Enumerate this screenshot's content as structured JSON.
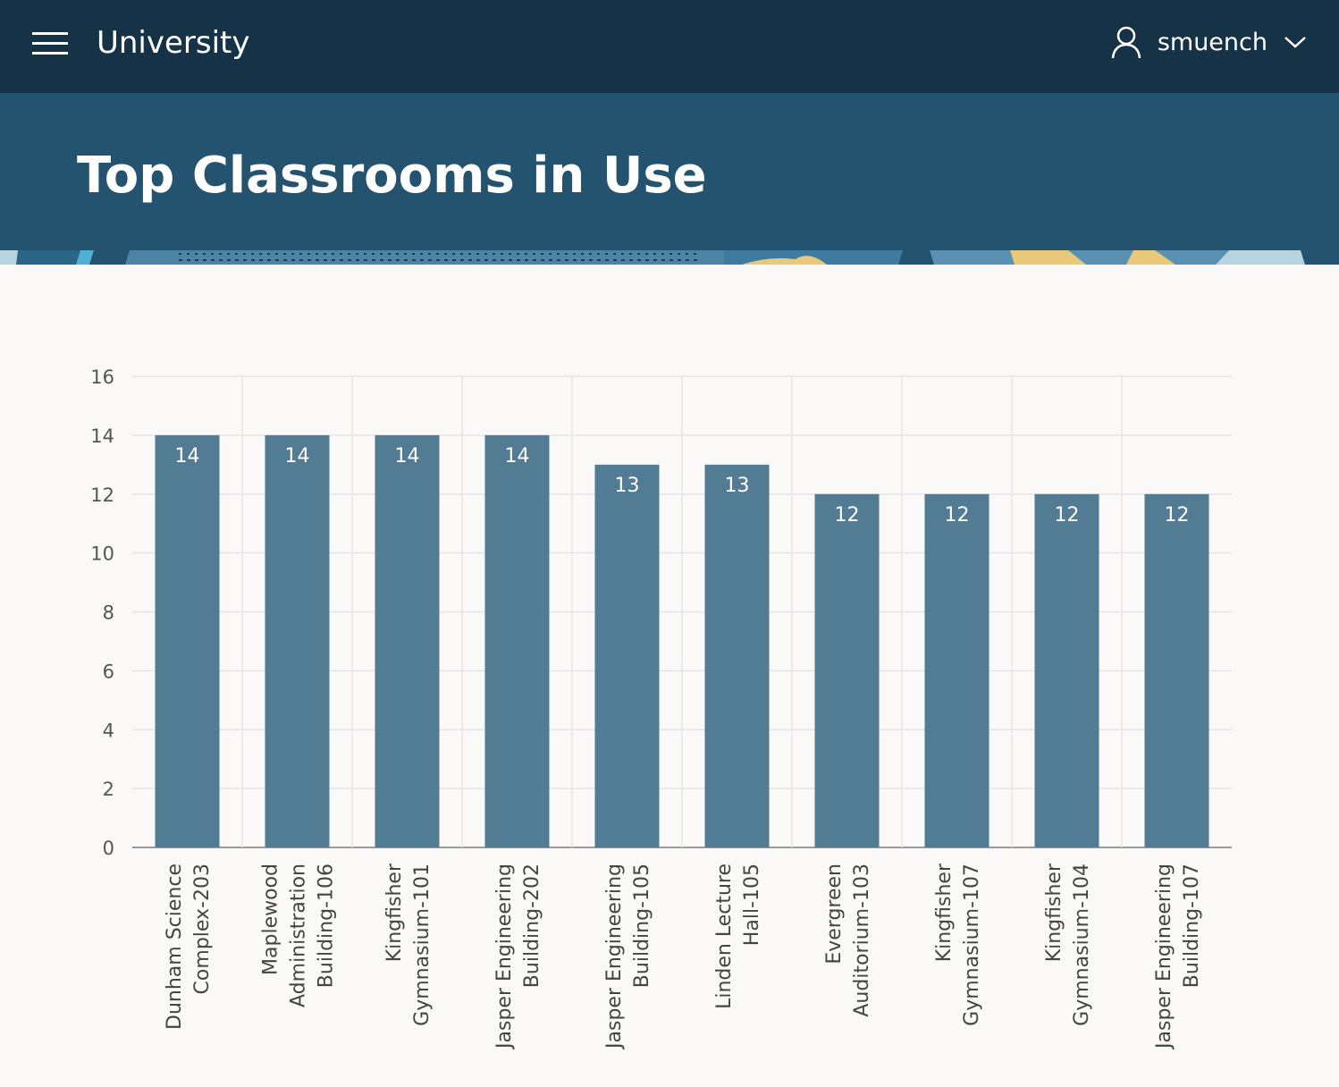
{
  "header": {
    "app_title": "University",
    "username": "smuench"
  },
  "page": {
    "title": "Top Classrooms in Use"
  },
  "colors": {
    "bar": "#527b94",
    "topbar": "#163246",
    "hero": "#23536e"
  },
  "chart_data": {
    "type": "bar",
    "categories": [
      [
        "Dunham Science",
        "Complex-203"
      ],
      [
        "Maplewood",
        "Administration",
        "Building-106"
      ],
      [
        "Kingfisher",
        "Gymnasium-101"
      ],
      [
        "Jasper Engineering",
        "Building-202"
      ],
      [
        "Jasper Engineering",
        "Building-105"
      ],
      [
        "Linden Lecture",
        "Hall-105"
      ],
      [
        "Evergreen",
        "Auditorium-103"
      ],
      [
        "Kingfisher",
        "Gymnasium-107"
      ],
      [
        "Kingfisher",
        "Gymnasium-104"
      ],
      [
        "Jasper Engineering",
        "Building-107"
      ]
    ],
    "values": [
      14,
      14,
      14,
      14,
      13,
      13,
      12,
      12,
      12,
      12
    ],
    "ylim": [
      0,
      16
    ],
    "yticks": [
      0,
      2,
      4,
      6,
      8,
      10,
      12,
      14,
      16
    ],
    "grid": true,
    "data_labels": true
  }
}
